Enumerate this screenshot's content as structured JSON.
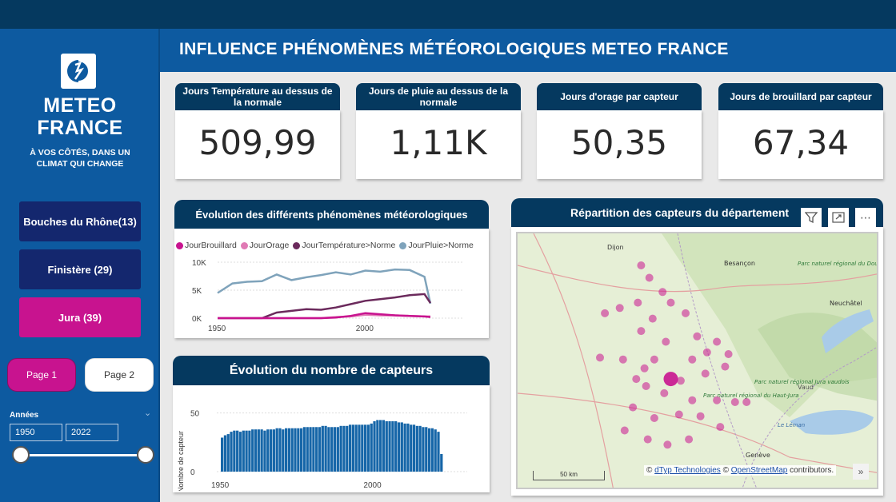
{
  "header": {
    "title": "INFLUENCE PHÉNOMÈNES MÉTÉOROLOGIQUES METEO FRANCE"
  },
  "logo": {
    "line1": "METEO",
    "line2": "FRANCE",
    "tagline1": "À VOS CÔTÉS, DANS UN",
    "tagline2": "CLIMAT QUI CHANGE"
  },
  "sidebar": {
    "dept_buttons": [
      "Bouches du Rhône(13)",
      "Finistère (29)",
      "Jura (39)"
    ],
    "page_buttons": [
      "Page 1",
      "Page 2"
    ],
    "years_label": "Années",
    "year_from": "1950",
    "year_to": "2022"
  },
  "kpis": [
    {
      "label": "Jours Température au dessus de la normale",
      "value": "509,99"
    },
    {
      "label": "Jours de pluie au dessus de la normale",
      "value": "1,11K"
    },
    {
      "label": "Jours d'orage par capteur",
      "value": "50,35"
    },
    {
      "label": "Jours de brouillard par capteur",
      "value": "67,34"
    }
  ],
  "line_panel": {
    "title": "Évolution des différents phénomènes météorologiques",
    "legend": [
      {
        "name": "JourBrouillard",
        "color": "#c8138f"
      },
      {
        "name": "JourOrage",
        "color": "#e07ab4"
      },
      {
        "name": "JourTempérature>Norme",
        "color": "#6b2a5c"
      },
      {
        "name": "JourPluie>Norme",
        "color": "#7fa3bb"
      }
    ]
  },
  "bar_panel": {
    "title": "Évolution du nombre de capteurs"
  },
  "map_panel": {
    "title": "Répartition des capteurs du département",
    "attribution_prefix": "©",
    "attribution_link1": "dTyp Technologies",
    "attribution_mid": "©",
    "attribution_link2": "OpenStreetMap",
    "attribution_suffix": "contributors.",
    "scale": "50 km",
    "places": [
      "Dijon",
      "Besançon",
      "Neuchâtel",
      "Genève",
      "Le Léman",
      "Parc naturel régional du Doubs Horloger",
      "Parc naturel régional du Haut-Jura",
      "Parc naturel régional Jura vaudois",
      "Vaud"
    ]
  },
  "chart_data": [
    {
      "type": "line",
      "title": "Évolution des différents phénomènes météorologiques",
      "x": [
        1950,
        1955,
        1960,
        1965,
        1970,
        1975,
        1980,
        1985,
        1990,
        1995,
        2000,
        2005,
        2010,
        2015,
        2020,
        2022
      ],
      "xticks": [
        1950,
        2000
      ],
      "yticks": [
        "0K",
        "5K",
        "10K"
      ],
      "ylim": [
        0,
        10000
      ],
      "series": [
        {
          "name": "JourBrouillard",
          "values": [
            0,
            0,
            0,
            0,
            0,
            0,
            0,
            0,
            100,
            400,
            900,
            700,
            500,
            400,
            300,
            200
          ]
        },
        {
          "name": "JourOrage",
          "values": [
            0,
            0,
            0,
            0,
            0,
            0,
            0,
            0,
            200,
            300,
            600,
            500,
            500,
            400,
            300,
            300
          ]
        },
        {
          "name": "JourTempérature>Norme",
          "values": [
            0,
            0,
            0,
            0,
            1000,
            1300,
            1600,
            1500,
            1900,
            2500,
            3100,
            3400,
            3700,
            4100,
            4300,
            2700
          ]
        },
        {
          "name": "JourPluie>Norme",
          "values": [
            4500,
            6200,
            6500,
            6600,
            7800,
            6800,
            7300,
            7700,
            8200,
            7800,
            8500,
            8300,
            8700,
            8600,
            7400,
            2600
          ]
        }
      ]
    },
    {
      "type": "bar",
      "title": "Évolution du nombre de capteurs",
      "ylabel": "Nombre de capteur",
      "xticks": [
        1950,
        2000
      ],
      "yticks": [
        0,
        50
      ],
      "ylim": [
        0,
        60
      ],
      "x": [
        1950,
        1951,
        1952,
        1953,
        1954,
        1955,
        1956,
        1957,
        1958,
        1959,
        1960,
        1961,
        1962,
        1963,
        1964,
        1965,
        1966,
        1967,
        1968,
        1969,
        1970,
        1971,
        1972,
        1973,
        1974,
        1975,
        1976,
        1977,
        1978,
        1979,
        1980,
        1981,
        1982,
        1983,
        1984,
        1985,
        1986,
        1987,
        1988,
        1989,
        1990,
        1991,
        1992,
        1993,
        1994,
        1995,
        1996,
        1997,
        1998,
        1999,
        2000,
        2001,
        2002,
        2003,
        2004,
        2005,
        2006,
        2007,
        2008,
        2009,
        2010,
        2011,
        2012,
        2013,
        2014,
        2015,
        2016,
        2017,
        2018,
        2019,
        2020,
        2021,
        2022
      ],
      "values": [
        29,
        31,
        32,
        34,
        35,
        35,
        34,
        35,
        35,
        35,
        36,
        36,
        36,
        36,
        35,
        36,
        36,
        36,
        37,
        37,
        36,
        37,
        37,
        37,
        37,
        37,
        37,
        38,
        38,
        38,
        38,
        38,
        38,
        39,
        39,
        38,
        38,
        38,
        38,
        39,
        39,
        39,
        40,
        40,
        40,
        40,
        40,
        40,
        40,
        41,
        43,
        44,
        44,
        44,
        43,
        43,
        43,
        43,
        42,
        42,
        41,
        41,
        40,
        40,
        39,
        39,
        38,
        38,
        37,
        37,
        36,
        34,
        15
      ]
    }
  ],
  "map_points": [
    {
      "lon": 5.55,
      "lat": 47.37,
      "size": 1
    },
    {
      "lon": 5.6,
      "lat": 47.3,
      "size": 1
    },
    {
      "lon": 5.68,
      "lat": 47.22,
      "size": 1
    },
    {
      "lon": 5.53,
      "lat": 47.16,
      "size": 1
    },
    {
      "lon": 5.42,
      "lat": 47.13,
      "size": 1
    },
    {
      "lon": 5.33,
      "lat": 47.1,
      "size": 1
    },
    {
      "lon": 5.82,
      "lat": 47.1,
      "size": 1
    },
    {
      "lon": 5.73,
      "lat": 47.16,
      "size": 1
    },
    {
      "lon": 5.62,
      "lat": 47.07,
      "size": 1
    },
    {
      "lon": 5.55,
      "lat": 47.0,
      "size": 1
    },
    {
      "lon": 5.7,
      "lat": 46.94,
      "size": 1
    },
    {
      "lon": 5.89,
      "lat": 46.97,
      "size": 1
    },
    {
      "lon": 6.01,
      "lat": 46.94,
      "size": 1
    },
    {
      "lon": 5.95,
      "lat": 46.88,
      "size": 1
    },
    {
      "lon": 6.08,
      "lat": 46.87,
      "size": 1
    },
    {
      "lon": 5.3,
      "lat": 46.85,
      "size": 1
    },
    {
      "lon": 5.44,
      "lat": 46.84,
      "size": 1
    },
    {
      "lon": 5.57,
      "lat": 46.79,
      "size": 1
    },
    {
      "lon": 5.63,
      "lat": 46.84,
      "size": 1
    },
    {
      "lon": 5.86,
      "lat": 46.84,
      "size": 1
    },
    {
      "lon": 5.52,
      "lat": 46.73,
      "size": 1
    },
    {
      "lon": 5.58,
      "lat": 46.69,
      "size": 1
    },
    {
      "lon": 5.79,
      "lat": 46.72,
      "size": 1
    },
    {
      "lon": 5.94,
      "lat": 46.76,
      "size": 1
    },
    {
      "lon": 6.06,
      "lat": 46.8,
      "size": 1
    },
    {
      "lon": 5.69,
      "lat": 46.65,
      "size": 1
    },
    {
      "lon": 5.86,
      "lat": 46.61,
      "size": 1
    },
    {
      "lon": 6.01,
      "lat": 46.61,
      "size": 1
    },
    {
      "lon": 6.12,
      "lat": 46.6,
      "size": 1
    },
    {
      "lon": 5.5,
      "lat": 46.57,
      "size": 1
    },
    {
      "lon": 5.63,
      "lat": 46.51,
      "size": 1
    },
    {
      "lon": 5.78,
      "lat": 46.53,
      "size": 1
    },
    {
      "lon": 5.91,
      "lat": 46.52,
      "size": 1
    },
    {
      "lon": 6.03,
      "lat": 46.46,
      "size": 1
    },
    {
      "lon": 5.45,
      "lat": 46.44,
      "size": 1
    },
    {
      "lon": 5.59,
      "lat": 46.39,
      "size": 1
    },
    {
      "lon": 5.71,
      "lat": 46.36,
      "size": 1
    },
    {
      "lon": 5.84,
      "lat": 46.39,
      "size": 1
    },
    {
      "lon": 5.73,
      "lat": 46.73,
      "size": 3
    },
    {
      "lon": 6.19,
      "lat": 46.6,
      "size": 1
    }
  ]
}
